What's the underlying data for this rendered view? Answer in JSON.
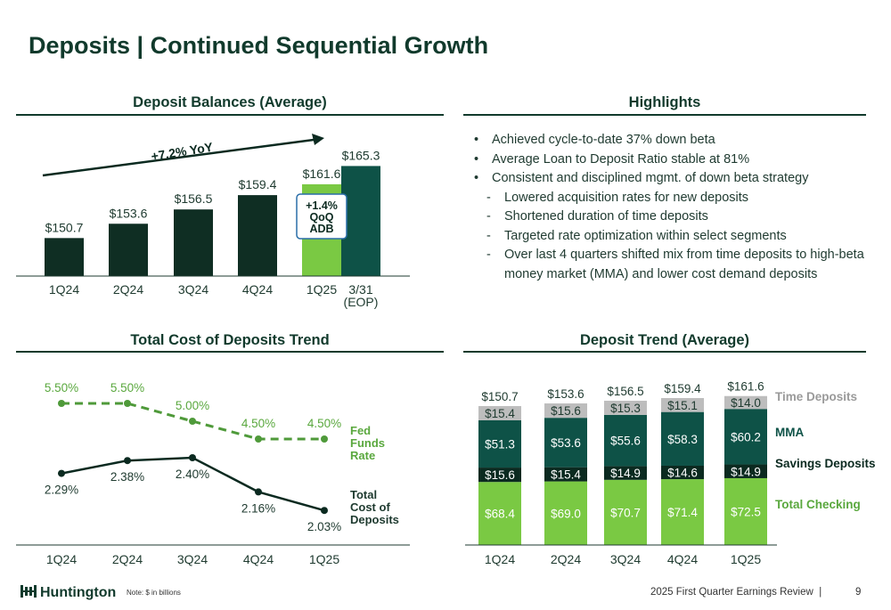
{
  "title": "Deposits | Continued Sequential Growth",
  "sections": {
    "balances": "Deposit Balances (Average)",
    "highlights": "Highlights",
    "cost_trend": "Total Cost of Deposits Trend",
    "deposit_trend": "Deposit Trend (Average)"
  },
  "highlights": [
    {
      "marker": "•",
      "text": "Achieved cycle-to-date 37% down beta",
      "level": 0
    },
    {
      "marker": "•",
      "text": "Average Loan to Deposit Ratio stable at 81%",
      "level": 0
    },
    {
      "marker": "•",
      "text": "Consistent and disciplined mgmt. of down beta strategy",
      "level": 0
    },
    {
      "marker": "-",
      "text": "Lowered acquisition rates for new deposits",
      "level": 1
    },
    {
      "marker": "-",
      "text": "Shortened duration of time deposits",
      "level": 1
    },
    {
      "marker": "-",
      "text": "Targeted rate optimization within select segments",
      "level": 1
    },
    {
      "marker": "-",
      "text": "Over last 4 quarters shifted mix from time deposits to high-beta money market (MMA) and lower cost demand deposits",
      "level": 1
    }
  ],
  "annotations": {
    "yoy": "+7.2% YoY",
    "qoq_line1": "+1.4%",
    "qoq_line2": "QoQ",
    "qoq_line3": "ADB"
  },
  "colors": {
    "dark_green": "#0f2e23",
    "teal": "#0e5247",
    "lime": "#7ac943",
    "gray": "#bdbdbd",
    "navy_dark": "#0b2a20"
  },
  "footer": {
    "logo": "Huntington",
    "note": "Note: $ in billions",
    "review": "2025 First Quarter Earnings Review",
    "page": "9"
  },
  "chart_data": [
    {
      "type": "bar",
      "categories": [
        "1Q24",
        "2Q24",
        "3Q24",
        "4Q24",
        "1Q25",
        "3/31 (EOP)"
      ],
      "category_lines": [
        [
          "1Q24"
        ],
        [
          "2Q24"
        ],
        [
          "3Q24"
        ],
        [
          "4Q24"
        ],
        [
          "1Q25"
        ],
        [
          "3/31",
          "(EOP)"
        ]
      ],
      "values": [
        150.7,
        153.6,
        156.5,
        159.4,
        161.6,
        165.3
      ],
      "labels": [
        "$150.7",
        "$153.6",
        "$156.5",
        "$159.4",
        "$161.6",
        "$165.3"
      ],
      "ylim": [
        143,
        167
      ]
    },
    {
      "type": "line",
      "categories": [
        "1Q24",
        "2Q24",
        "3Q24",
        "4Q24",
        "1Q25"
      ],
      "series": [
        {
          "name": "Fed Funds Rate",
          "name_lines": [
            "Fed",
            "Funds",
            "Rate"
          ],
          "values": [
            5.5,
            5.5,
            5.0,
            4.5,
            4.5
          ],
          "labels": [
            "5.50%",
            "5.50%",
            "5.00%",
            "4.50%",
            "4.50%"
          ],
          "style": "dashed"
        },
        {
          "name": "Total Cost of Deposits",
          "name_lines": [
            "Total",
            "Cost of",
            "Deposits"
          ],
          "values": [
            2.29,
            2.38,
            2.4,
            2.16,
            2.03
          ],
          "labels": [
            "2.29%",
            "2.38%",
            "2.40%",
            "2.16%",
            "2.03%"
          ],
          "style": "solid"
        }
      ]
    },
    {
      "type": "bar",
      "stacked": true,
      "categories": [
        "1Q24",
        "2Q24",
        "3Q24",
        "4Q24",
        "1Q25"
      ],
      "totals": [
        "$150.7",
        "$153.6",
        "$156.5",
        "$159.4",
        "$161.6"
      ],
      "series": [
        {
          "name": "Total Checking",
          "values": [
            68.4,
            69.0,
            70.7,
            71.4,
            72.5
          ],
          "labels": [
            "$68.4",
            "$69.0",
            "$70.7",
            "$71.4",
            "$72.5"
          ]
        },
        {
          "name": "Savings Deposits",
          "values": [
            15.6,
            15.4,
            14.9,
            14.6,
            14.9
          ],
          "labels": [
            "$15.6",
            "$15.4",
            "$14.9",
            "$14.6",
            "$14.9"
          ]
        },
        {
          "name": "MMA",
          "values": [
            51.3,
            53.6,
            55.6,
            58.3,
            60.2
          ],
          "labels": [
            "$51.3",
            "$53.6",
            "$55.6",
            "$58.3",
            "$60.2"
          ]
        },
        {
          "name": "Time Deposits",
          "values": [
            15.4,
            15.6,
            15.3,
            15.1,
            14.0
          ],
          "labels": [
            "$15.4",
            "$15.6",
            "$15.3",
            "$15.1",
            "$14.0"
          ]
        }
      ]
    }
  ]
}
